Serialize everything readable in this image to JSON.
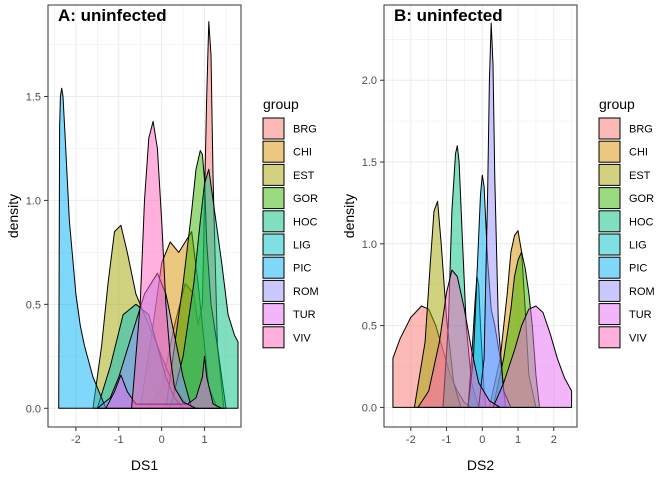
{
  "chart_data": [
    {
      "type": "area",
      "title": "A: uninfected",
      "xlabel": "DS1",
      "ylabel": "density",
      "xlim": [
        -2.65,
        1.85
      ],
      "ylim": [
        -0.09,
        1.94
      ],
      "xticks": [
        -2,
        -1,
        0,
        1
      ],
      "yticks": [
        0.0,
        0.5,
        1.0,
        1.5
      ],
      "ytick_labels": [
        "0.0",
        "0.5",
        "1.0",
        "1.5"
      ],
      "grid": true,
      "legend": {
        "title": "group",
        "placement": "right"
      },
      "series": [
        {
          "name": "BRG",
          "color": "#F8766D",
          "x": [
            -0.3,
            0.0,
            0.3,
            0.55,
            0.75,
            0.85,
            0.95,
            1.0,
            1.05,
            1.1,
            1.15,
            1.2,
            1.3,
            1.45
          ],
          "y": [
            0,
            0.1,
            0.4,
            0.6,
            0.55,
            0.4,
            0.5,
            1.0,
            1.5,
            1.86,
            1.7,
            1.1,
            0.3,
            0
          ]
        },
        {
          "name": "CHI",
          "color": "#D89000",
          "x": [
            -0.5,
            -0.2,
            0.0,
            0.2,
            0.4,
            0.55,
            0.7,
            0.85,
            1.0,
            1.1,
            1.3
          ],
          "y": [
            0,
            0.4,
            0.7,
            0.8,
            0.75,
            0.8,
            0.85,
            0.6,
            0.3,
            0.1,
            0
          ]
        },
        {
          "name": "EST",
          "color": "#A3A500",
          "x": [
            -1.6,
            -1.4,
            -1.25,
            -1.1,
            -0.95,
            -0.8,
            -0.6,
            -0.3,
            -0.1,
            0.1,
            0.3,
            0.5,
            0.7
          ],
          "y": [
            0,
            0.3,
            0.6,
            0.85,
            0.88,
            0.75,
            0.55,
            0.4,
            0.3,
            0.2,
            0.1,
            0.04,
            0
          ]
        },
        {
          "name": "GOR",
          "color": "#39B600",
          "x": [
            0.1,
            0.3,
            0.5,
            0.7,
            0.8,
            0.9,
            0.95,
            1.0,
            1.05,
            1.15,
            1.3,
            1.5
          ],
          "y": [
            0,
            0.3,
            0.6,
            0.95,
            1.15,
            1.24,
            1.22,
            1.1,
            0.8,
            0.5,
            0.3,
            0
          ]
        },
        {
          "name": "HOC",
          "color": "#00BF7D",
          "x": [
            0.2,
            0.5,
            0.75,
            0.9,
            1.0,
            1.1,
            1.2,
            1.4,
            1.55,
            1.7,
            1.78
          ],
          "y": [
            0,
            0.25,
            0.6,
            0.9,
            1.08,
            1.15,
            1.0,
            0.7,
            0.45,
            0.35,
            0.32
          ]
        },
        {
          "name": "LIG",
          "color": "#00BFC4",
          "x": [
            -1.5,
            -1.2,
            -0.9,
            -0.6,
            -0.3,
            -0.1,
            0.1,
            0.3,
            0.5
          ],
          "y": [
            0,
            0.2,
            0.45,
            0.5,
            0.45,
            0.3,
            0.15,
            0.05,
            0
          ]
        },
        {
          "name": "PIC",
          "color": "#00B0F6",
          "x": [
            -2.4,
            -2.38,
            -2.36,
            -2.33,
            -2.3,
            -2.25,
            -2.15,
            -2.0,
            -1.9,
            -1.8,
            -1.6,
            -1.4,
            -1.3
          ],
          "y": [
            0,
            1.35,
            1.5,
            1.54,
            1.5,
            1.3,
            0.9,
            0.55,
            0.4,
            0.3,
            0.15,
            0.05,
            0
          ]
        },
        {
          "name": "ROM",
          "color": "#9590FF",
          "x": [
            -1.5,
            -1.2,
            -1.0,
            -0.7,
            -0.4,
            -0.1,
            0.1,
            0.3,
            0.5,
            0.7
          ],
          "y": [
            0,
            0.05,
            0.15,
            0.35,
            0.55,
            0.65,
            0.55,
            0.35,
            0.15,
            0
          ]
        },
        {
          "name": "TUR",
          "color": "#E76BF3",
          "x": [
            -1.3,
            -1.1,
            -0.95,
            -0.8,
            -0.6,
            -0.3,
            0.0,
            0.3,
            0.6,
            0.8,
            0.95,
            1.0,
            1.05,
            1.2,
            1.4
          ],
          "y": [
            0,
            0.08,
            0.16,
            0.08,
            0.02,
            0.02,
            0.02,
            0.02,
            0.02,
            0.05,
            0.15,
            0.25,
            0.15,
            0.02,
            0
          ]
        },
        {
          "name": "VIV",
          "color": "#FF62BC",
          "x": [
            -0.7,
            -0.5,
            -0.4,
            -0.3,
            -0.2,
            -0.1,
            0.0,
            0.1,
            0.2,
            0.3,
            0.5,
            0.8
          ],
          "y": [
            0,
            0.5,
            1.0,
            1.3,
            1.38,
            1.25,
            0.9,
            0.5,
            0.25,
            0.1,
            0.03,
            0
          ]
        }
      ]
    },
    {
      "type": "area",
      "title": "B: uninfected",
      "xlabel": "DS2",
      "ylabel": "density",
      "xlim": [
        -2.75,
        2.65
      ],
      "ylim": [
        -0.12,
        2.46
      ],
      "xticks": [
        -2,
        -1,
        0,
        1,
        2
      ],
      "yticks": [
        0.0,
        0.5,
        1.0,
        1.5,
        2.0
      ],
      "ytick_labels": [
        "0.0",
        "0.5",
        "1.0",
        "1.5",
        "2.0"
      ],
      "grid": true,
      "legend": {
        "title": "group",
        "placement": "right"
      },
      "series": [
        {
          "name": "BRG",
          "color": "#F8766D",
          "x": [
            -2.5,
            -2.3,
            -2.0,
            -1.7,
            -1.5,
            -1.3,
            -1.1,
            -0.9,
            -0.7,
            -0.5,
            -0.3
          ],
          "y": [
            0.3,
            0.42,
            0.55,
            0.62,
            0.6,
            0.5,
            0.35,
            0.2,
            0.1,
            0.03,
            0
          ]
        },
        {
          "name": "CHI",
          "color": "#D89000",
          "x": [
            0.2,
            0.5,
            0.7,
            0.8,
            0.9,
            1.0,
            1.1,
            1.2,
            1.3,
            1.5
          ],
          "y": [
            0,
            0.3,
            0.7,
            0.95,
            1.05,
            1.08,
            0.95,
            0.6,
            0.2,
            0
          ]
        },
        {
          "name": "EST",
          "color": "#A3A500",
          "x": [
            -1.9,
            -1.6,
            -1.45,
            -1.35,
            -1.25,
            -1.15,
            -1.0,
            -0.8,
            -0.6
          ],
          "y": [
            0,
            0.4,
            0.9,
            1.2,
            1.26,
            1.0,
            0.55,
            0.15,
            0
          ]
        },
        {
          "name": "GOR",
          "color": "#39B600",
          "x": [
            0.3,
            0.6,
            0.8,
            0.9,
            1.0,
            1.1,
            1.2,
            1.3,
            1.4,
            1.5,
            1.6
          ],
          "y": [
            0,
            0.3,
            0.6,
            0.8,
            0.9,
            0.95,
            0.85,
            0.7,
            0.5,
            0.2,
            0
          ]
        },
        {
          "name": "HOC",
          "color": "#00BF7D",
          "x": [
            -1.1,
            -0.95,
            -0.85,
            -0.75,
            -0.7,
            -0.65,
            -0.55,
            -0.45,
            -0.3,
            -0.1
          ],
          "y": [
            0,
            0.5,
            1.2,
            1.55,
            1.6,
            1.5,
            1.0,
            0.5,
            0.15,
            0
          ]
        },
        {
          "name": "LIG",
          "color": "#00BFC4",
          "x": [
            -0.4,
            -0.3,
            -0.2,
            -0.15,
            -0.1,
            -0.05,
            0.0,
            0.05,
            0.1
          ],
          "y": [
            0,
            0.3,
            0.65,
            0.8,
            0.75,
            0.5,
            0.3,
            0.1,
            0
          ]
        },
        {
          "name": "PIC",
          "color": "#00B0F6",
          "x": [
            -0.4,
            -0.25,
            -0.15,
            -0.05,
            0.0,
            0.05,
            0.15,
            0.25,
            0.35,
            0.5,
            0.65
          ],
          "y": [
            0,
            0.3,
            0.8,
            1.3,
            1.42,
            1.35,
            0.9,
            0.6,
            0.5,
            0.3,
            0
          ]
        },
        {
          "name": "ROM",
          "color": "#9590FF",
          "x": [
            -0.1,
            0.05,
            0.15,
            0.2,
            0.25,
            0.3,
            0.35,
            0.45,
            0.6,
            0.8
          ],
          "y": [
            0,
            0.3,
            1.3,
            2.0,
            2.35,
            2.1,
            1.4,
            0.5,
            0.1,
            0
          ]
        },
        {
          "name": "TUR",
          "color": "#E76BF3",
          "x": [
            0.3,
            0.6,
            0.9,
            1.1,
            1.3,
            1.5,
            1.7,
            1.9,
            2.1,
            2.3,
            2.5
          ],
          "y": [
            0,
            0.15,
            0.35,
            0.5,
            0.6,
            0.62,
            0.58,
            0.45,
            0.3,
            0.18,
            0.1
          ]
        },
        {
          "name": "VIV",
          "color": "#FF62BC",
          "x": [
            -1.8,
            -1.5,
            -1.2,
            -1.0,
            -0.85,
            -0.7,
            -0.5,
            -0.3,
            -0.1,
            0.2,
            0.5
          ],
          "y": [
            0,
            0.1,
            0.4,
            0.7,
            0.84,
            0.8,
            0.6,
            0.35,
            0.15,
            0.04,
            0
          ]
        }
      ]
    }
  ]
}
